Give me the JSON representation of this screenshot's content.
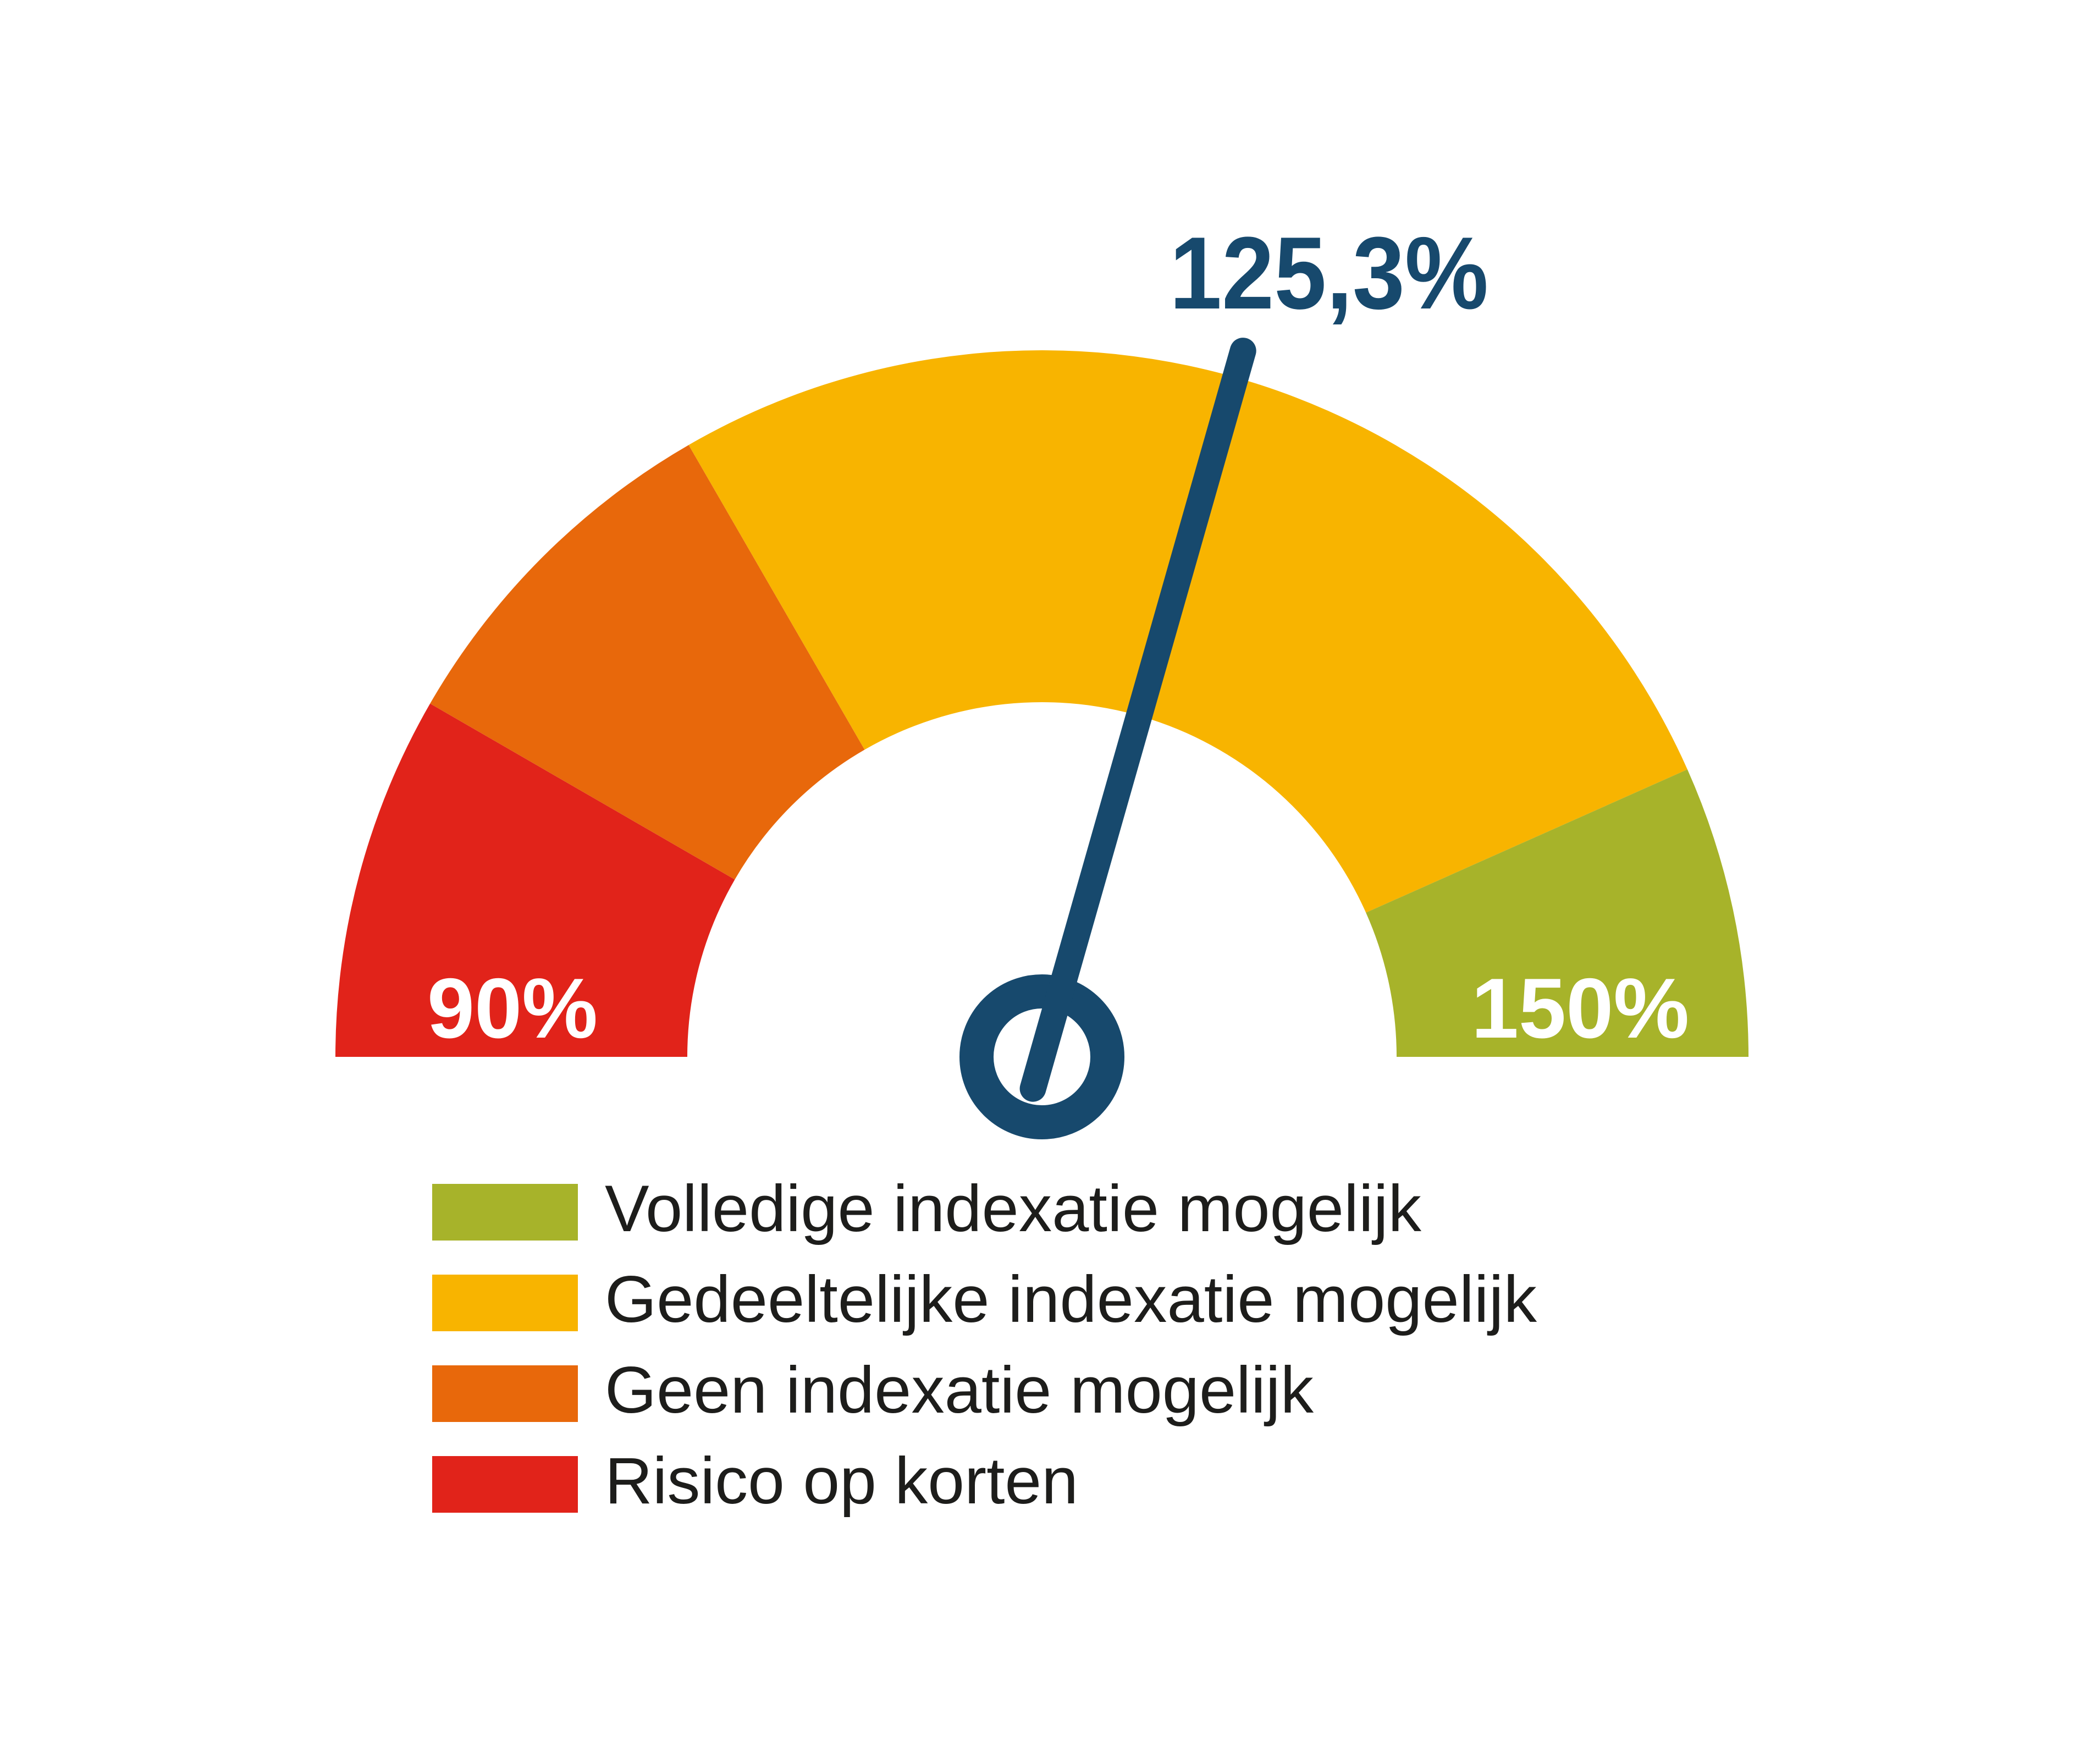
{
  "chart_data": {
    "type": "gauge",
    "title": "",
    "min": 90,
    "max": 150,
    "start_angle_deg": 180,
    "end_angle_deg": 0,
    "value": 125.3,
    "value_label": "125,3%",
    "min_label": "90%",
    "max_label": "150%",
    "unit": "%",
    "segments": [
      {
        "label": "Risico op korten",
        "from": 90,
        "to": 100,
        "color": "#e1231a"
      },
      {
        "label": "Geen indexatie mogelijk",
        "from": 100,
        "to": 110,
        "color": "#e8680b"
      },
      {
        "label": "Gedeeltelijke indexatie mogelijk",
        "from": 110,
        "to": 142,
        "color": "#f8b400"
      },
      {
        "label": "Volledige indexatie mogelijk",
        "from": 142,
        "to": 150,
        "color": "#a7b32a"
      }
    ],
    "needle_color": "#17496d",
    "value_label_color": "#17496d",
    "range_label_color": "#ffffff",
    "grid": false,
    "legend_position": "bottom-left"
  },
  "legend": {
    "text_color": "#1d1d1b",
    "items": [
      {
        "label": "Volledige indexatie mogelijk",
        "color": "#a7b32a"
      },
      {
        "label": "Gedeeltelijke indexatie mogelijk",
        "color": "#f8b400"
      },
      {
        "label": "Geen indexatie mogelijk",
        "color": "#e8680b"
      },
      {
        "label": "Risico op korten",
        "color": "#e1231a"
      }
    ]
  },
  "background_color": "#ffffff"
}
